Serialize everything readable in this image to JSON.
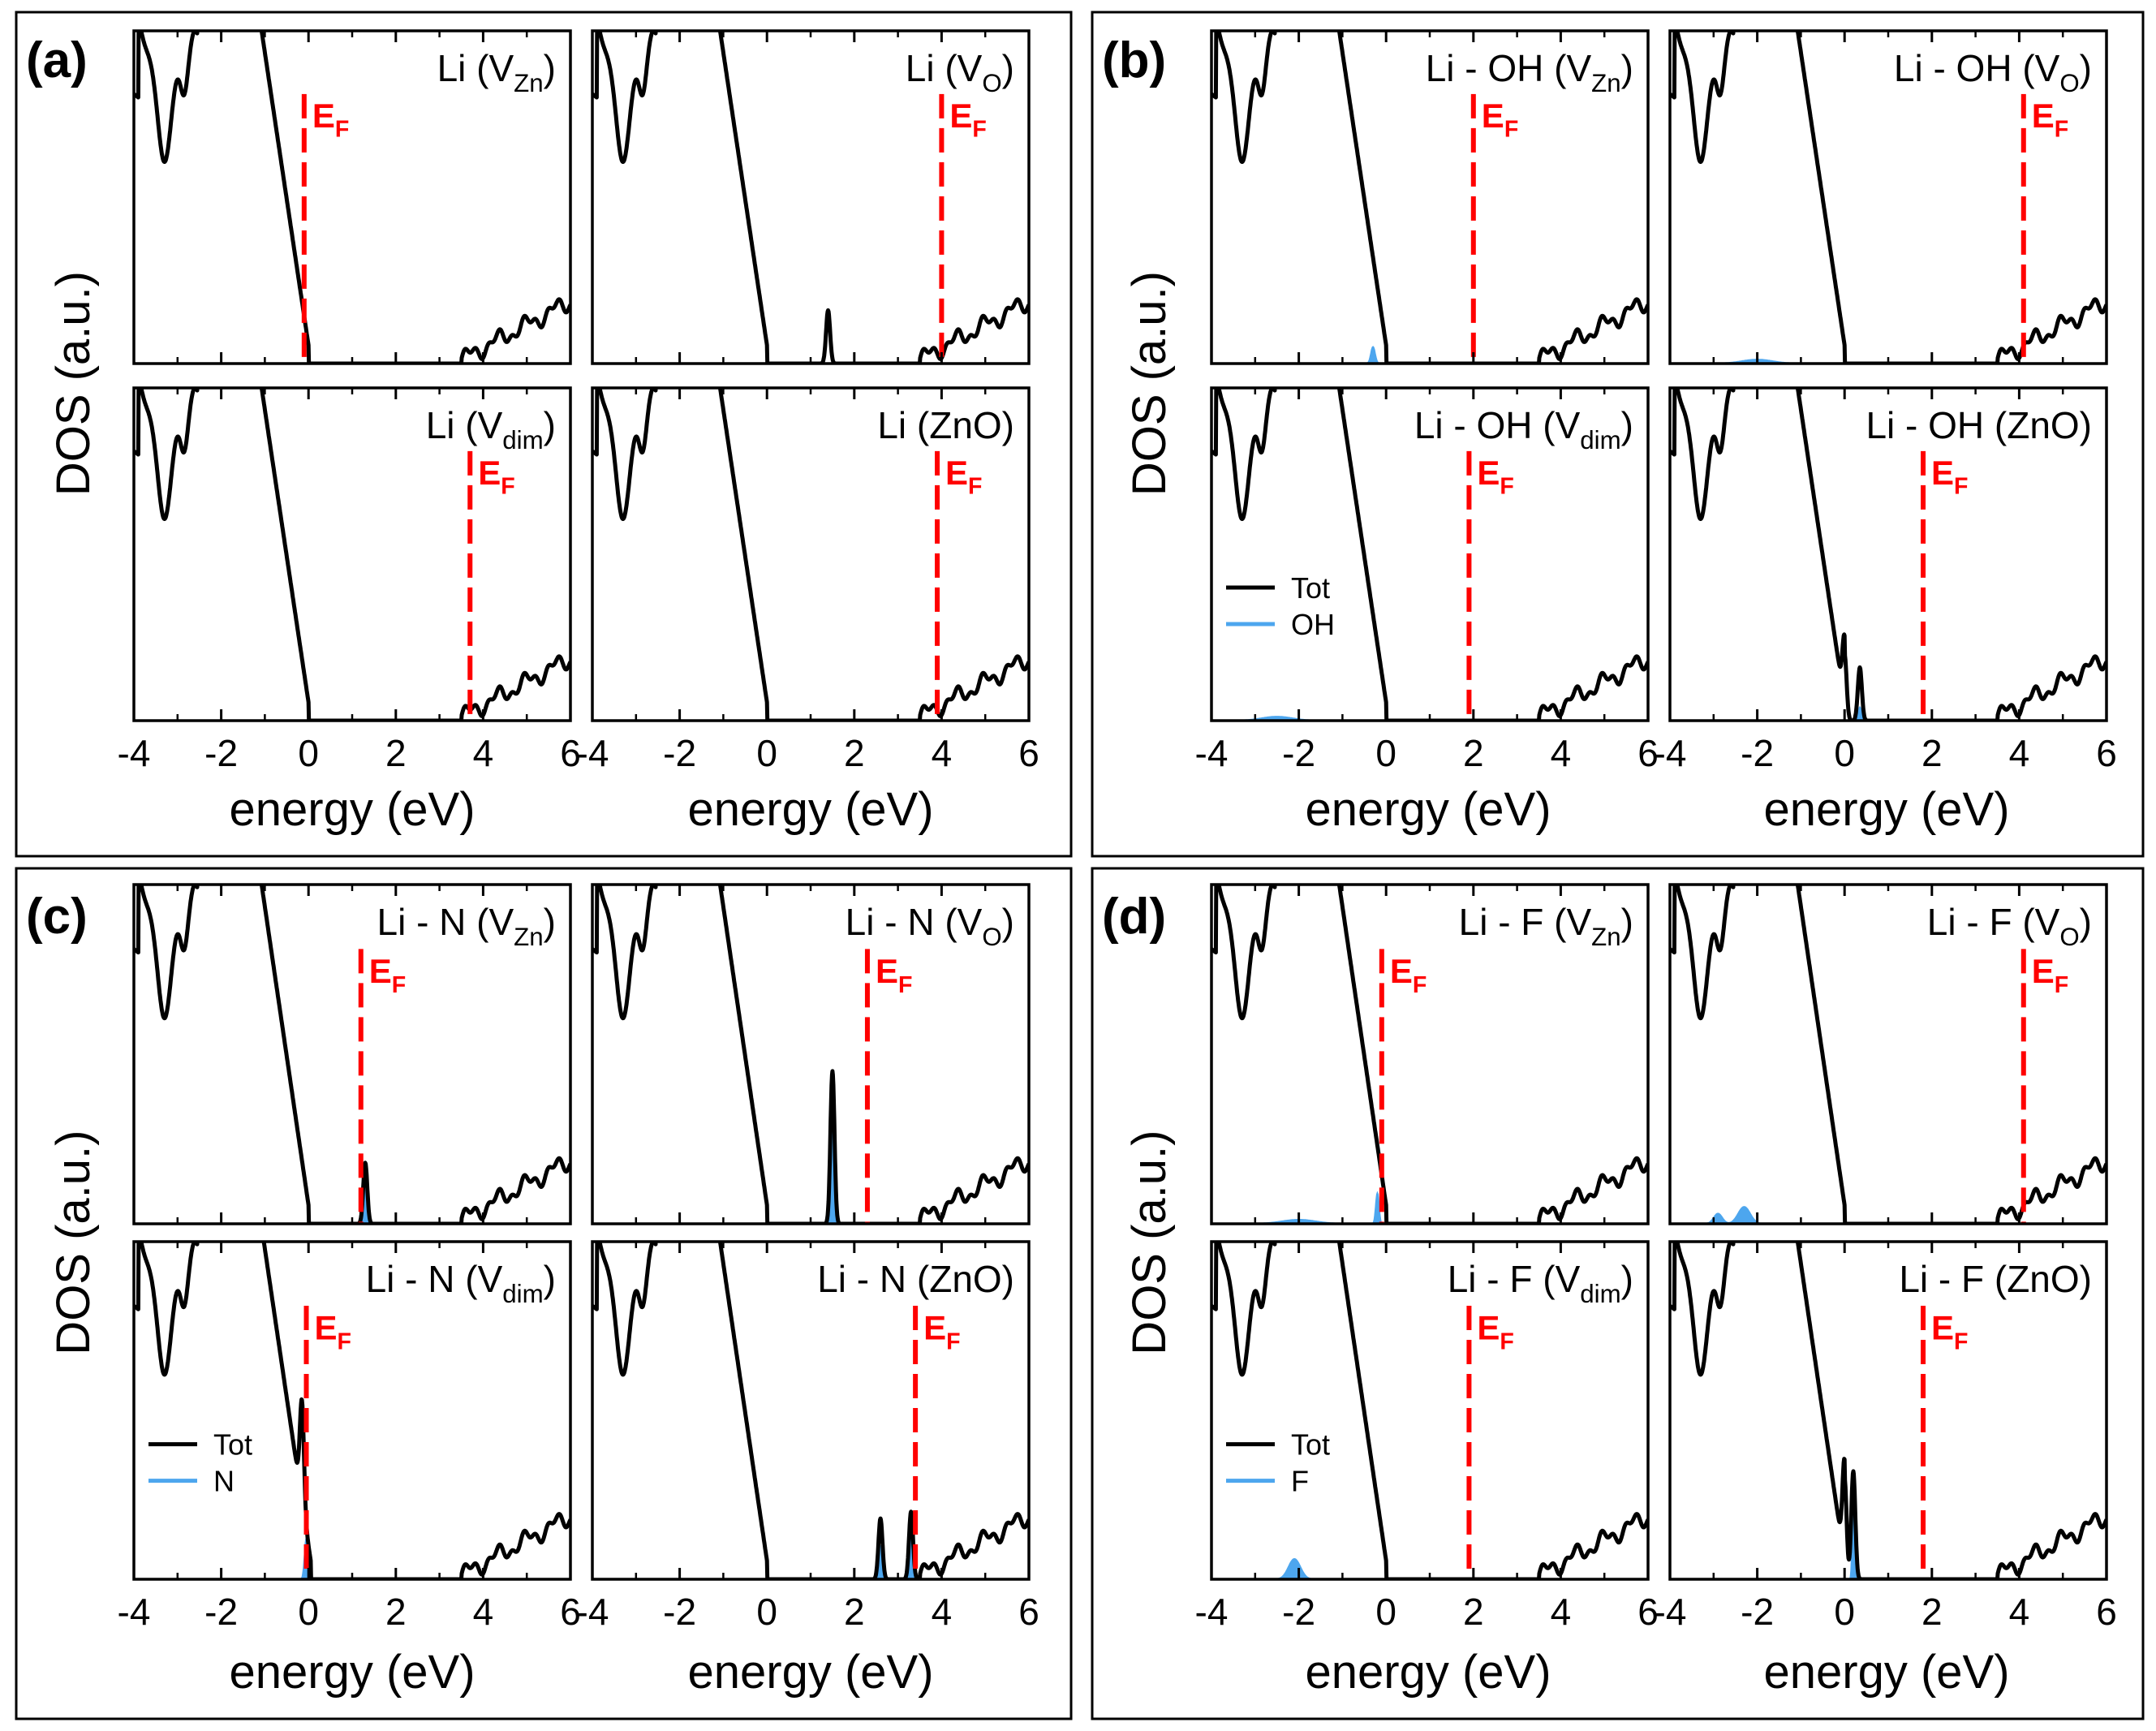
{
  "figure": {
    "quadrants": [
      {
        "label": "(a)",
        "legend": null
      },
      {
        "label": "(b)",
        "legend": {
          "items": [
            {
              "name": "Tot",
              "color": "#000000"
            },
            {
              "name": "OH",
              "color": "#4da6ee"
            }
          ],
          "subplot": 2
        }
      },
      {
        "label": "(c)",
        "legend": {
          "items": [
            {
              "name": "Tot",
              "color": "#000000"
            },
            {
              "name": "N",
              "color": "#4da6ee"
            }
          ],
          "subplot": 2
        }
      },
      {
        "label": "(d)",
        "legend": {
          "items": [
            {
              "name": "Tot",
              "color": "#000000"
            },
            {
              "name": "F",
              "color": "#4da6ee"
            }
          ],
          "subplot": 2
        }
      }
    ],
    "ylabel": "DOS (a.u.)",
    "xlabel": "energy (eV)",
    "ef_main": "E",
    "ef_sub": "F",
    "colors": {
      "total": "#000000",
      "projected": "#4da6ee",
      "fermi": "#ff0000"
    }
  },
  "chart_data": [
    {
      "type": "line",
      "quadrant": "(a)",
      "title_main": "Li  (V",
      "title_sub": "Zn",
      "title_end": ")",
      "xlim": [
        -4,
        6
      ],
      "xticks": [
        "-4",
        "-2",
        "0",
        "2",
        "4",
        "6"
      ],
      "fermi_level": -0.1,
      "gap_start": 0.0,
      "cbm": 3.5,
      "peaks": []
    },
    {
      "type": "line",
      "quadrant": "(a)",
      "title_main": "Li (V",
      "title_sub": "O",
      "title_end": ")",
      "xlim": [
        -4,
        6
      ],
      "xticks": [
        "-4",
        "-2",
        "0",
        "2",
        "4",
        "6"
      ],
      "fermi_level": 4.0,
      "gap_start": 0.0,
      "cbm": 3.5,
      "peaks": [
        {
          "x": 1.4,
          "total": 0.16
        }
      ]
    },
    {
      "type": "line",
      "quadrant": "(a)",
      "title_main": "Li (V",
      "title_sub": "dim",
      "title_end": ")",
      "xlim": [
        -4,
        6
      ],
      "xticks": [
        "-4",
        "-2",
        "0",
        "2",
        "4",
        "6"
      ],
      "fermi_level": 3.7,
      "gap_start": 0.0,
      "cbm": 3.5,
      "peaks": []
    },
    {
      "type": "line",
      "quadrant": "(a)",
      "title_main": "Li (ZnO)",
      "title_sub": "",
      "title_end": "",
      "xlim": [
        -4,
        6
      ],
      "xticks": [
        "-4",
        "-2",
        "0",
        "2",
        "4",
        "6"
      ],
      "fermi_level": 3.9,
      "gap_start": 0.0,
      "cbm": 3.5,
      "peaks": []
    },
    {
      "type": "line",
      "quadrant": "(b)",
      "title_main": "Li - OH (V",
      "title_sub": "Zn",
      "title_end": ")",
      "xlim": [
        -4,
        6
      ],
      "xticks": [
        "-4",
        "-2",
        "0",
        "2",
        "4",
        "6"
      ],
      "fermi_level": 2.0,
      "gap_start": 0.0,
      "cbm": 3.5,
      "peaks": [],
      "pdos": [
        {
          "x": -0.3,
          "h": 0.05,
          "w": 0.12
        }
      ]
    },
    {
      "type": "line",
      "quadrant": "(b)",
      "title_main": "Li - OH (V",
      "title_sub": "O",
      "title_end": ")",
      "xlim": [
        -4,
        6
      ],
      "xticks": [
        "-4",
        "-2",
        "0",
        "2",
        "4",
        "6"
      ],
      "fermi_level": 4.1,
      "gap_start": 0.0,
      "cbm": 3.5,
      "peaks": [],
      "pdos": [
        {
          "x": -2.0,
          "h": 0.012,
          "w": 0.9
        }
      ]
    },
    {
      "type": "line",
      "quadrant": "(b)",
      "title_main": "Li - OH (V",
      "title_sub": "dim",
      "title_end": ")",
      "xlim": [
        -4,
        6
      ],
      "xticks": [
        "-4",
        "-2",
        "0",
        "2",
        "4",
        "6"
      ],
      "fermi_level": 1.9,
      "gap_start": 0.0,
      "cbm": 3.5,
      "peaks": [],
      "pdos": [
        {
          "x": -2.5,
          "h": 0.012,
          "w": 0.9
        }
      ]
    },
    {
      "type": "line",
      "quadrant": "(b)",
      "title_main": "Li - OH (ZnO)",
      "title_sub": "",
      "title_end": "",
      "xlim": [
        -4,
        6
      ],
      "xticks": [
        "-4",
        "-2",
        "0",
        "2",
        "4",
        "6"
      ],
      "fermi_level": 1.8,
      "gap_start": 0.0,
      "cbm": 3.5,
      "peaks": [
        {
          "x": 0.0,
          "total": 0.2
        },
        {
          "x": 0.35,
          "total": 0.16
        }
      ],
      "pdos": [
        {
          "x": 0.35,
          "h": 0.04,
          "w": 0.08
        }
      ]
    },
    {
      "type": "line",
      "quadrant": "(c)",
      "title_main": "Li - N (V",
      "title_sub": "Zn",
      "title_end": ")",
      "xlim": [
        -4,
        6
      ],
      "xticks": [
        "-4",
        "-2",
        "0",
        "2",
        "4",
        "6"
      ],
      "fermi_level": 1.2,
      "gap_start": 0.0,
      "cbm": 3.5,
      "peaks": [
        {
          "x": 1.3,
          "total": 0.18
        }
      ],
      "pdos": [
        {
          "x": 1.3,
          "h": 0.11,
          "w": 0.09
        }
      ]
    },
    {
      "type": "line",
      "quadrant": "(c)",
      "title_main": "Li - N (V",
      "title_sub": "O",
      "title_end": ")",
      "xlim": [
        -4,
        6
      ],
      "xticks": [
        "-4",
        "-2",
        "0",
        "2",
        "4",
        "6"
      ],
      "fermi_level": 2.3,
      "gap_start": 0.0,
      "cbm": 3.5,
      "peaks": [
        {
          "x": 1.5,
          "total": 0.45
        }
      ],
      "pdos": [
        {
          "x": 1.5,
          "h": 0.33,
          "w": 0.09
        }
      ]
    },
    {
      "type": "line",
      "quadrant": "(c)",
      "title_main": "Li - N (V",
      "title_sub": "dim",
      "title_end": ")",
      "xlim": [
        -4,
        6
      ],
      "xticks": [
        "-4",
        "-2",
        "0",
        "2",
        "4",
        "6"
      ],
      "fermi_level": -0.05,
      "gap_start": 0.05,
      "cbm": 3.5,
      "peaks": [
        {
          "x": -0.15,
          "total": 0.3
        }
      ],
      "pdos": [
        {
          "x": -0.05,
          "h": 0.12,
          "w": 0.1
        }
      ]
    },
    {
      "type": "line",
      "quadrant": "(c)",
      "title_main": "Li - N (ZnO)",
      "title_sub": "",
      "title_end": "",
      "xlim": [
        -4,
        6
      ],
      "xticks": [
        "-4",
        "-2",
        "0",
        "2",
        "4",
        "6"
      ],
      "fermi_level": 3.4,
      "gap_start": 0.0,
      "cbm": 3.5,
      "peaks": [
        {
          "x": 2.6,
          "total": 0.18
        },
        {
          "x": 3.3,
          "total": 0.2
        }
      ],
      "pdos": [
        {
          "x": 2.6,
          "h": 0.1,
          "w": 0.07
        },
        {
          "x": 3.3,
          "h": 0.12,
          "w": 0.07
        }
      ]
    },
    {
      "type": "line",
      "quadrant": "(d)",
      "title_main": "Li - F (V",
      "title_sub": "Zn",
      "title_end": ")",
      "xlim": [
        -4,
        6
      ],
      "xticks": [
        "-4",
        "-2",
        "0",
        "2",
        "4",
        "6"
      ],
      "fermi_level": -0.1,
      "gap_start": 0.0,
      "cbm": 3.5,
      "peaks": [],
      "pdos": [
        {
          "x": -0.2,
          "h": 0.09,
          "w": 0.09
        },
        {
          "x": -2.0,
          "h": 0.012,
          "w": 1.0
        }
      ]
    },
    {
      "type": "line",
      "quadrant": "(d)",
      "title_main": "Li - F (V",
      "title_sub": "O",
      "title_end": ")",
      "xlim": [
        -4,
        6
      ],
      "xticks": [
        "-4",
        "-2",
        "0",
        "2",
        "4",
        "6"
      ],
      "fermi_level": 4.1,
      "gap_start": 0.0,
      "cbm": 3.5,
      "peaks": [],
      "pdos": [
        {
          "x": -2.3,
          "h": 0.05,
          "w": 0.35
        },
        {
          "x": -2.9,
          "h": 0.03,
          "w": 0.25
        }
      ]
    },
    {
      "type": "line",
      "quadrant": "(d)",
      "title_main": "Li - F (V",
      "title_sub": "dim",
      "title_end": ")",
      "xlim": [
        -4,
        6
      ],
      "xticks": [
        "-4",
        "-2",
        "0",
        "2",
        "4",
        "6"
      ],
      "fermi_level": 1.9,
      "gap_start": 0.0,
      "cbm": 3.5,
      "peaks": [],
      "pdos": [
        {
          "x": -2.1,
          "h": 0.06,
          "w": 0.35
        }
      ]
    },
    {
      "type": "line",
      "quadrant": "(d)",
      "title_main": "Li - F (ZnO)",
      "title_sub": "",
      "title_end": "",
      "xlim": [
        -4,
        6
      ],
      "xticks": [
        "-4",
        "-2",
        "0",
        "2",
        "4",
        "6"
      ],
      "fermi_level": 1.8,
      "gap_start": 0.0,
      "cbm": 3.5,
      "peaks": [
        {
          "x": 0.0,
          "total": 0.3
        },
        {
          "x": 0.2,
          "total": 0.32
        }
      ],
      "pdos": [
        {
          "x": 0.2,
          "h": 0.25,
          "w": 0.06
        }
      ]
    }
  ]
}
